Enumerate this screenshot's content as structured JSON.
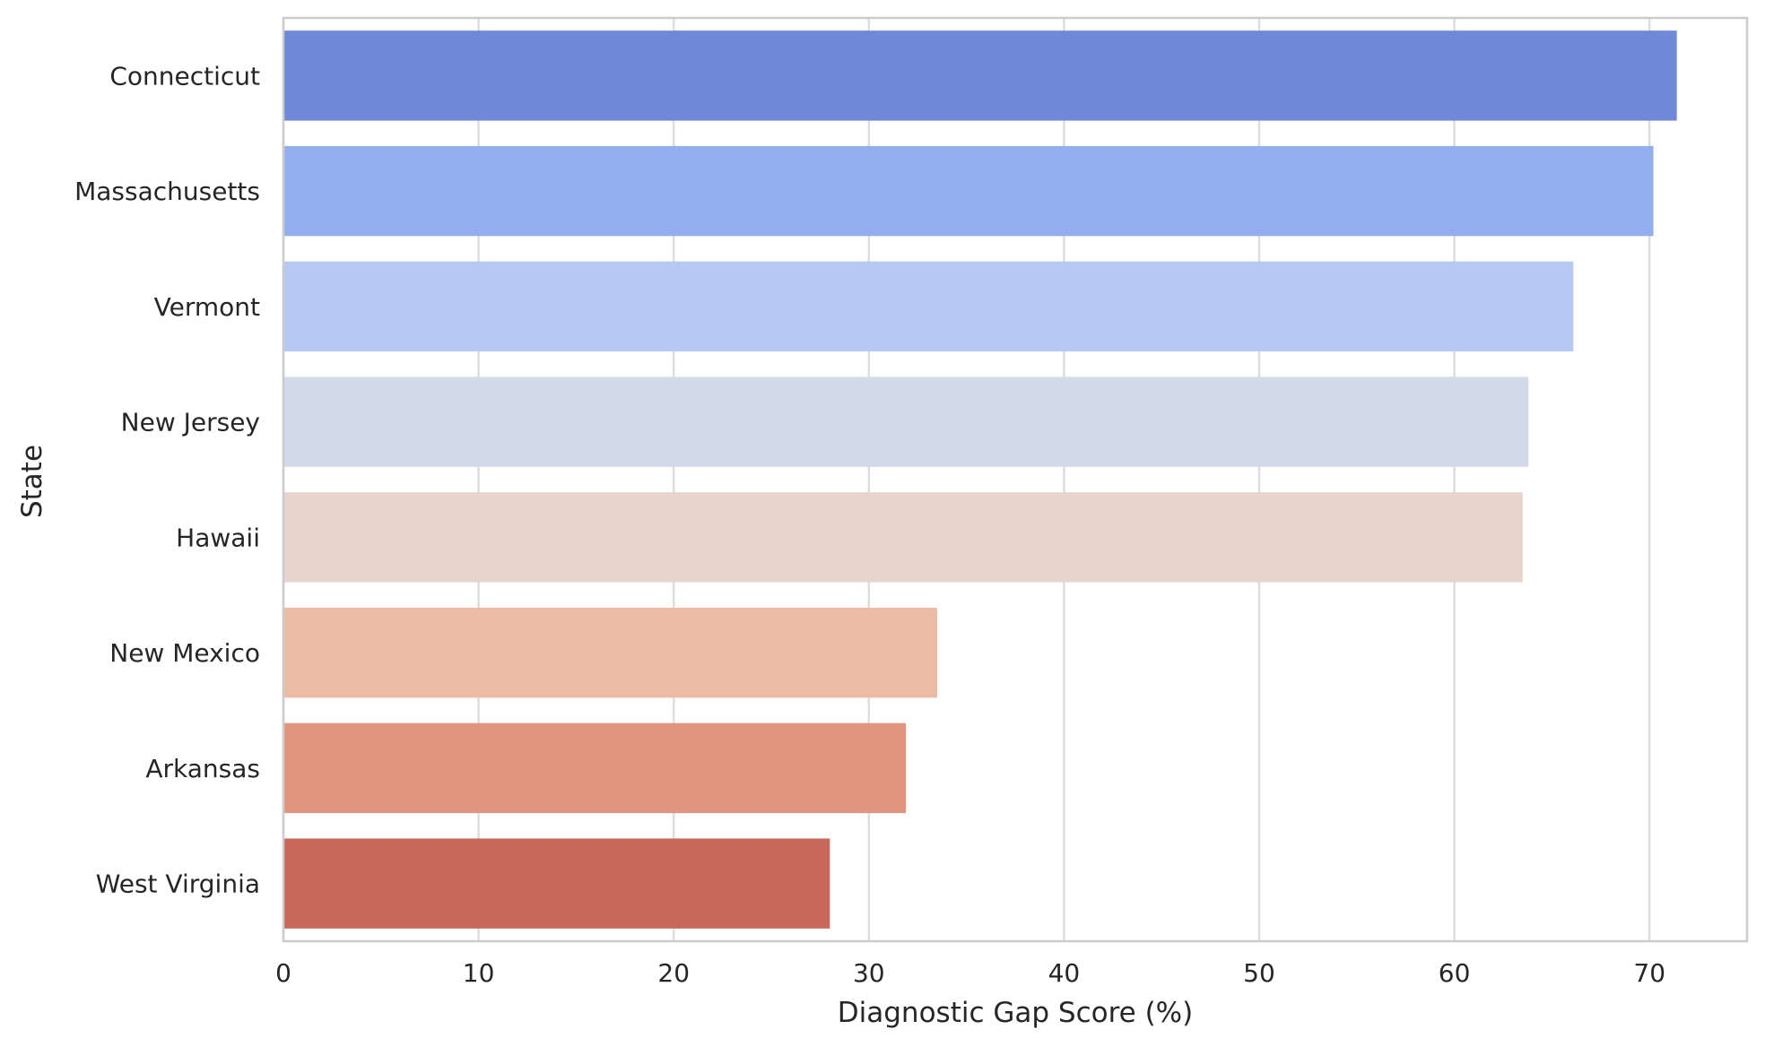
{
  "chart_data": {
    "type": "bar",
    "orientation": "horizontal",
    "xlabel": "Diagnostic Gap Score (%)",
    "ylabel": "State",
    "xlim": [
      0,
      75
    ],
    "x_ticks": [
      "0",
      "10",
      "20",
      "30",
      "40",
      "50",
      "60",
      "70"
    ],
    "grid": true,
    "categories": [
      "Connecticut",
      "Massachusetts",
      "Vermont",
      "New Jersey",
      "Hawaii",
      "New Mexico",
      "Arkansas",
      "West Virginia"
    ],
    "values": [
      71.4,
      70.2,
      66.1,
      63.8,
      63.5,
      33.5,
      31.9,
      28.0
    ],
    "colors": [
      "#6f88d8",
      "#92aeed",
      "#b5c9f2",
      "#d1dbea",
      "#e6d4cd",
      "#ecbba6",
      "#e1957e",
      "#c8675b"
    ]
  }
}
